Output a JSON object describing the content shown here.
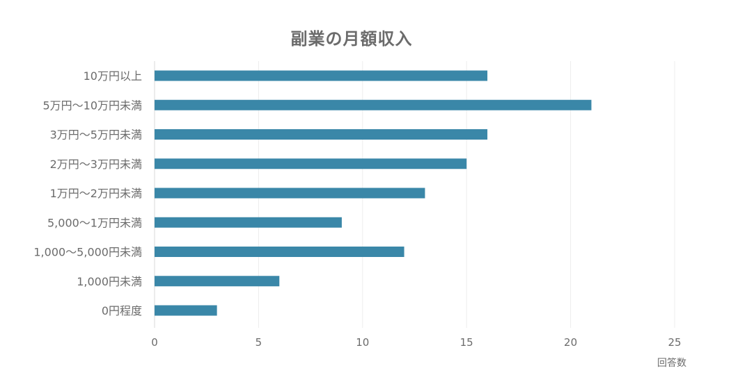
{
  "chart_data": {
    "type": "bar",
    "orientation": "horizontal",
    "title": "副業の月額収入",
    "xlabel": "回答数",
    "ylabel": "",
    "categories": [
      "10万円以上",
      "5万円〜10万円未満",
      "3万円〜5万円未満",
      "2万円〜3万円未満",
      "1万円〜2万円未満",
      "5,000〜1万円未満",
      "1,000〜5,000円未満",
      "1,000円未満",
      "0円程度"
    ],
    "values": [
      16,
      21,
      16,
      15,
      13,
      9,
      12,
      6,
      3
    ],
    "xlim": [
      0,
      25
    ],
    "xticks": [
      0,
      5,
      10,
      15,
      20,
      25
    ],
    "grid": true,
    "legend": "none",
    "bar_color": "#3a87a8"
  }
}
